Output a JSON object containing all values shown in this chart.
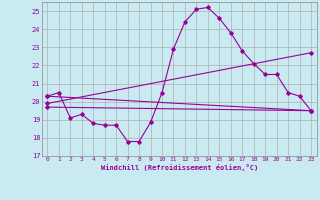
{
  "background_color": "#c8eaf0",
  "grid_color": "#b0b0b0",
  "line_color": "#990099",
  "xlabel": "Windchill (Refroidissement éolien,°C)",
  "xlim": [
    -0.5,
    23.5
  ],
  "ylim": [
    17,
    25.5
  ],
  "yticks": [
    17,
    18,
    19,
    20,
    21,
    22,
    23,
    24,
    25
  ],
  "xticks": [
    0,
    1,
    2,
    3,
    4,
    5,
    6,
    7,
    8,
    9,
    10,
    11,
    12,
    13,
    14,
    15,
    16,
    17,
    18,
    19,
    20,
    21,
    22,
    23
  ],
  "series": [
    {
      "x": [
        0,
        1,
        2,
        3,
        4,
        5,
        6,
        7,
        8,
        9,
        10,
        11,
        12,
        13,
        14,
        15,
        16,
        17,
        18,
        19,
        20,
        21,
        22,
        23
      ],
      "y": [
        20.3,
        20.5,
        19.1,
        19.3,
        18.8,
        18.7,
        18.7,
        17.8,
        17.8,
        18.85,
        20.5,
        22.9,
        24.4,
        25.1,
        25.2,
        24.6,
        23.8,
        22.8,
        22.1,
        21.5,
        21.5,
        20.5,
        20.3,
        19.5
      ]
    },
    {
      "x": [
        0,
        23
      ],
      "y": [
        20.3,
        19.5
      ]
    },
    {
      "x": [
        0,
        23
      ],
      "y": [
        19.9,
        22.7
      ]
    },
    {
      "x": [
        0,
        23
      ],
      "y": [
        19.7,
        19.5
      ]
    }
  ]
}
